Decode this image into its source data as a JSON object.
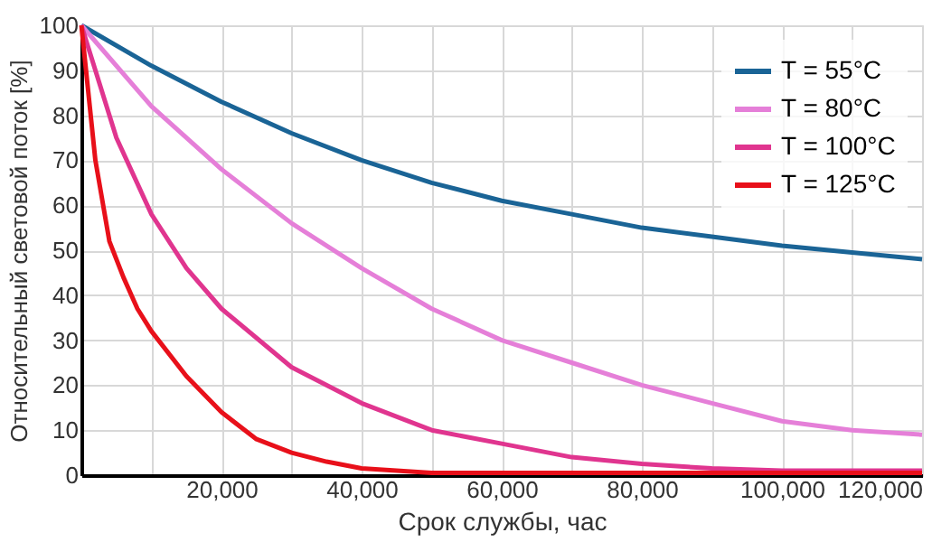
{
  "chart_data": {
    "type": "line",
    "xlabel": "Срок службы, час",
    "ylabel": "Относительный световой  поток [%]",
    "xlim": [
      0,
      120000
    ],
    "xticks": [
      {
        "value": 10000,
        "label": null
      },
      {
        "value": 20000,
        "label": "20,000"
      },
      {
        "value": 30000,
        "label": null
      },
      {
        "value": 40000,
        "label": "40,000"
      },
      {
        "value": 50000,
        "label": null
      },
      {
        "value": 60000,
        "label": "60,000"
      },
      {
        "value": 70000,
        "label": null
      },
      {
        "value": 80000,
        "label": "80,000"
      },
      {
        "value": 90000,
        "label": null
      },
      {
        "value": 100000,
        "label": "100,000"
      },
      {
        "value": 110000,
        "label": null
      },
      {
        "value": 120000,
        "label": "120,000"
      }
    ],
    "ylim": [
      0,
      100
    ],
    "yticks": [
      0,
      10,
      20,
      30,
      40,
      50,
      60,
      70,
      80,
      90,
      100
    ],
    "grid": true,
    "legend": "top right",
    "marker": "none",
    "line_style": "solid",
    "series": [
      {
        "name": "T =   55°C",
        "color": "#1a6496",
        "x": [
          0,
          10000,
          20000,
          30000,
          40000,
          50000,
          60000,
          70000,
          80000,
          90000,
          100000,
          110000,
          120000
        ],
        "values": [
          100,
          91,
          83,
          76,
          70,
          65,
          61,
          58,
          55,
          53,
          51,
          49.5,
          48
        ]
      },
      {
        "name": "T =   80°C",
        "color": "#e57fd8",
        "x": [
          0,
          10000,
          20000,
          30000,
          40000,
          50000,
          60000,
          70000,
          80000,
          90000,
          100000,
          110000,
          120000
        ],
        "values": [
          100,
          82,
          68,
          56,
          46,
          37,
          30,
          25,
          20,
          16,
          12,
          10,
          9
        ]
      },
      {
        "name": "T = 100°C",
        "color": "#e0358f",
        "x": [
          0,
          5000,
          10000,
          15000,
          20000,
          30000,
          40000,
          50000,
          60000,
          70000,
          80000,
          90000,
          100000,
          120000
        ],
        "values": [
          100,
          75,
          58,
          46,
          37,
          24,
          16,
          10,
          7,
          4,
          2.5,
          1.5,
          1,
          1
        ]
      },
      {
        "name": "T = 125°C",
        "color": "#e8101a",
        "x": [
          0,
          2000,
          4000,
          6000,
          8000,
          10000,
          15000,
          20000,
          25000,
          30000,
          35000,
          40000,
          50000,
          60000,
          120000
        ],
        "values": [
          100,
          70,
          52,
          44,
          37,
          32,
          22,
          14,
          8,
          5,
          3,
          1.5,
          0.5,
          0.5,
          0.5
        ]
      }
    ]
  }
}
